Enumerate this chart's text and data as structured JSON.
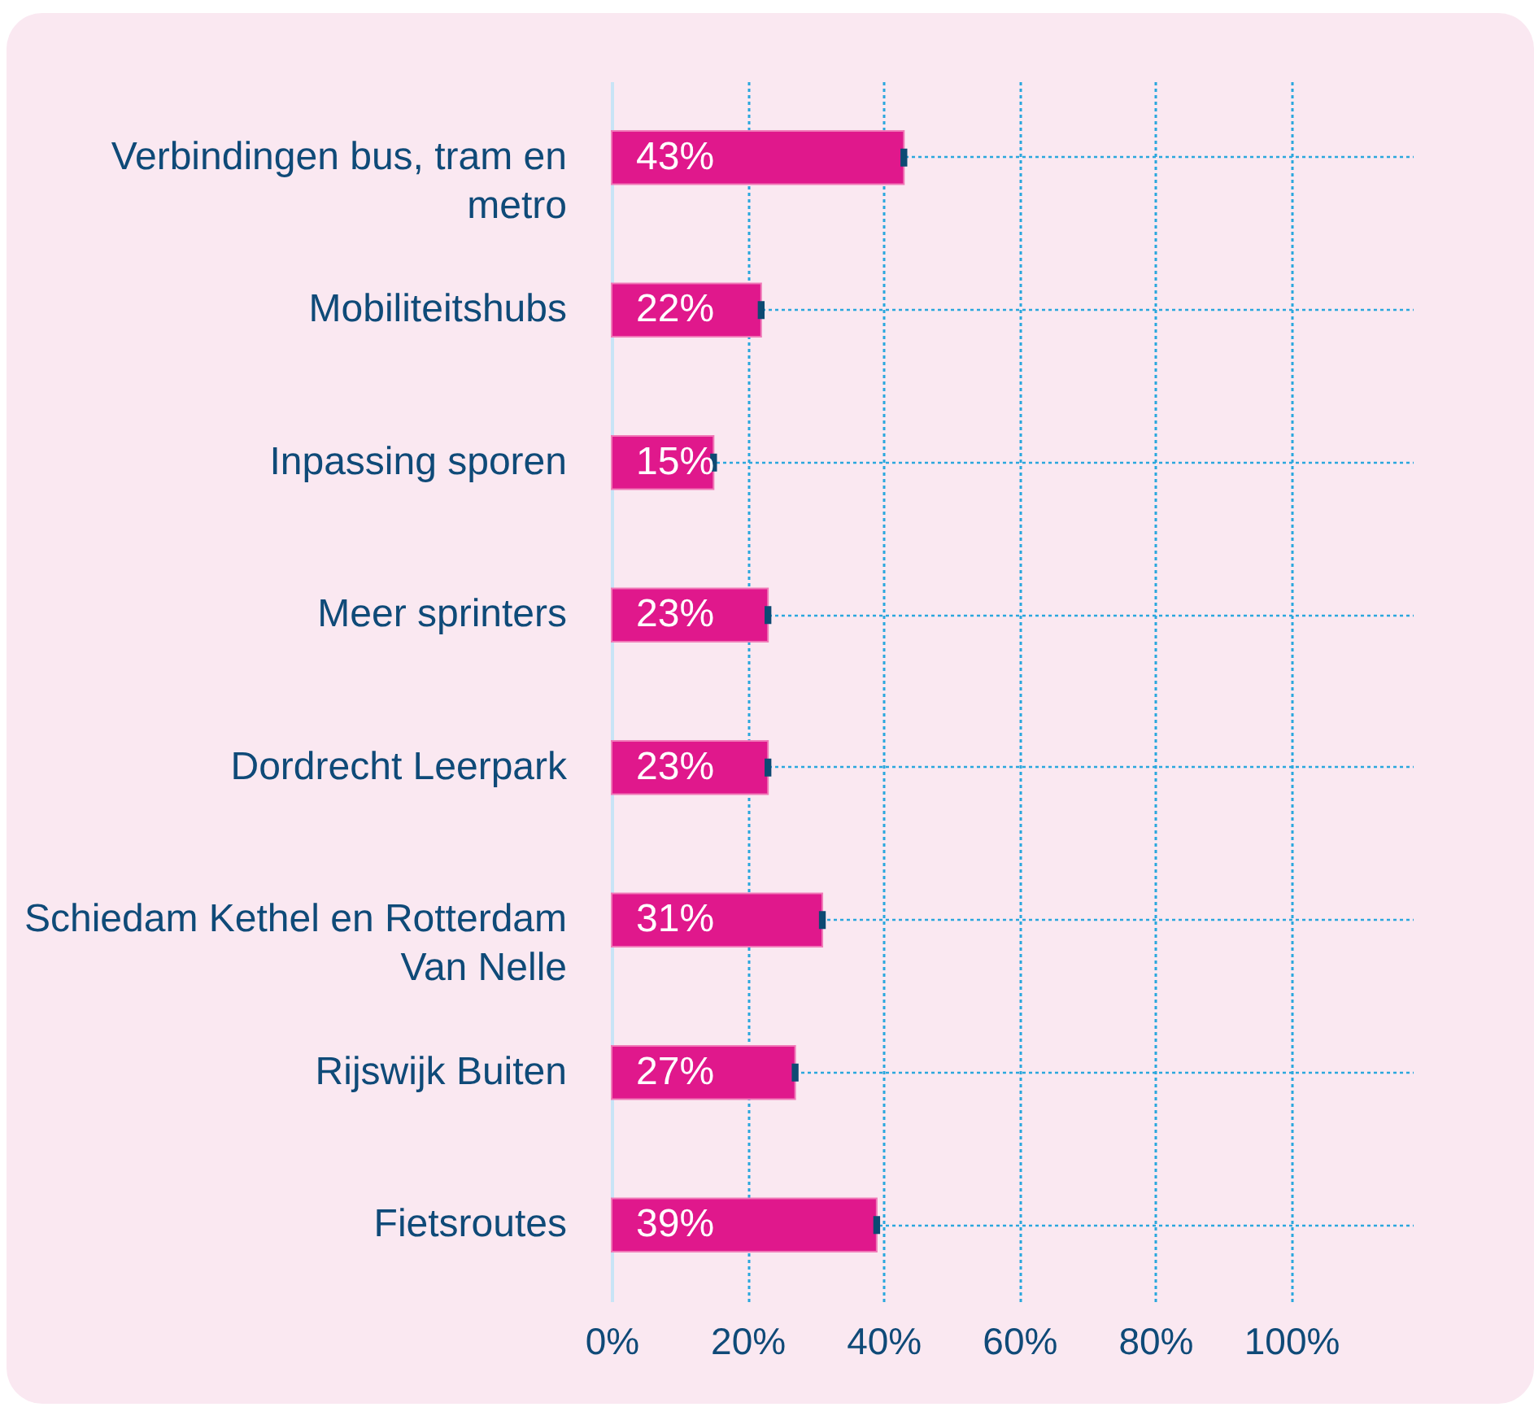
{
  "chart_data": {
    "type": "bar",
    "orientation": "horizontal",
    "categories": [
      "Verbindingen bus, tram en metro",
      "Mobiliteitshubs",
      "Inpassing sporen",
      "Meer sprinters",
      "Dordrecht Leerpark",
      "Schiedam Kethel en Rotterdam Van Nelle",
      "Rijswijk Buiten",
      "Fietsroutes"
    ],
    "values": [
      43,
      22,
      15,
      23,
      23,
      31,
      27,
      39
    ],
    "value_labels": [
      "43%",
      "22%",
      "15%",
      "23%",
      "23%",
      "31%",
      "27%",
      "39%"
    ],
    "errors": [
      0.5,
      0.5,
      0.5,
      0.5,
      0.5,
      0.5,
      0.5,
      0.5
    ],
    "color": "#e0188c",
    "xlim": [
      0,
      118
    ],
    "xticks": [
      {
        "value": 0,
        "label": "0%"
      },
      {
        "value": 20,
        "label": "20%"
      },
      {
        "value": 40,
        "label": "40%"
      },
      {
        "value": 60,
        "label": "60%"
      },
      {
        "value": 80,
        "label": "80%"
      },
      {
        "value": 100,
        "label": "100%"
      }
    ],
    "grid": true
  }
}
